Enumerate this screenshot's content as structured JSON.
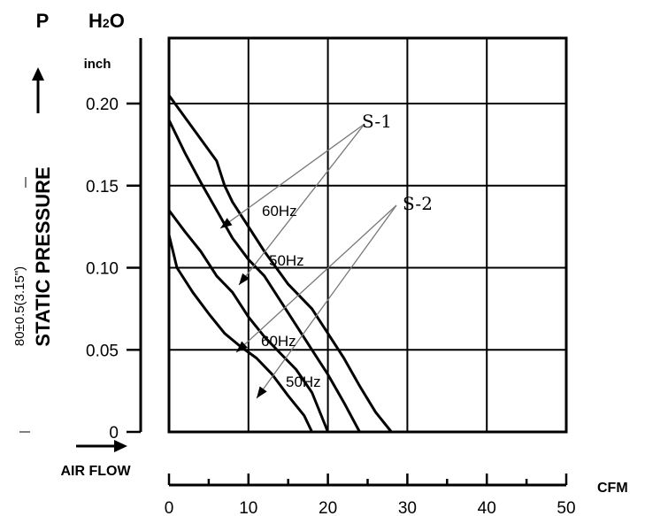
{
  "chart_data": {
    "type": "line",
    "y_axis": {
      "symbol": "P",
      "unit_main": "H",
      "unit_sub": "2",
      "unit_end": "O",
      "unit_line2": "inch",
      "label": "STATIC PRESSURE",
      "side_note": "80±0.5(3.15\")",
      "ylim": [
        0,
        0.2
      ],
      "ticks": [
        "0",
        "0.05",
        "0.10",
        "0.15",
        "0.20"
      ]
    },
    "x_axis": {
      "label": "AIR FLOW",
      "unit": "CFM",
      "xlim": [
        0,
        50
      ],
      "ticks": [
        "0",
        "10",
        "20",
        "30",
        "40",
        "50"
      ]
    },
    "grid": true,
    "series": [
      {
        "name": "S-1 60Hz",
        "points": [
          [
            0,
            0.205
          ],
          [
            3,
            0.185
          ],
          [
            6,
            0.165
          ],
          [
            7,
            0.15
          ],
          [
            8,
            0.14
          ],
          [
            10,
            0.125
          ],
          [
            12,
            0.11
          ],
          [
            15,
            0.09
          ],
          [
            18,
            0.075
          ],
          [
            20,
            0.06
          ],
          [
            22,
            0.045
          ],
          [
            24,
            0.028
          ],
          [
            26,
            0.012
          ],
          [
            28,
            0.0
          ]
        ]
      },
      {
        "name": "S-1 50Hz",
        "points": [
          [
            0,
            0.19
          ],
          [
            2,
            0.17
          ],
          [
            4,
            0.152
          ],
          [
            6,
            0.135
          ],
          [
            8,
            0.118
          ],
          [
            10,
            0.105
          ],
          [
            12,
            0.095
          ],
          [
            14,
            0.08
          ],
          [
            16,
            0.065
          ],
          [
            18,
            0.05
          ],
          [
            20,
            0.035
          ],
          [
            22,
            0.018
          ],
          [
            24,
            0.0
          ]
        ]
      },
      {
        "name": "S-2 60Hz",
        "points": [
          [
            0,
            0.135
          ],
          [
            2,
            0.122
          ],
          [
            4,
            0.11
          ],
          [
            6,
            0.095
          ],
          [
            8,
            0.085
          ],
          [
            10,
            0.07
          ],
          [
            12,
            0.058
          ],
          [
            14,
            0.048
          ],
          [
            16,
            0.038
          ],
          [
            18,
            0.024
          ],
          [
            20,
            0.0
          ]
        ]
      },
      {
        "name": "S-2 50Hz",
        "points": [
          [
            0,
            0.12
          ],
          [
            1,
            0.1
          ],
          [
            3,
            0.085
          ],
          [
            5,
            0.072
          ],
          [
            7,
            0.06
          ],
          [
            9,
            0.052
          ],
          [
            11,
            0.045
          ],
          [
            13,
            0.035
          ],
          [
            15,
            0.022
          ],
          [
            17,
            0.01
          ],
          [
            18,
            0.0
          ]
        ]
      }
    ],
    "annotations": [
      {
        "text": "S-1",
        "group": "S-1"
      },
      {
        "text": "S-2",
        "group": "S-2"
      },
      {
        "text": "60Hz",
        "series": "S-1 60Hz"
      },
      {
        "text": "50Hz",
        "series": "S-1 50Hz"
      },
      {
        "text": "60Hz",
        "series": "S-2 60Hz"
      },
      {
        "text": "50Hz",
        "series": "S-2 50Hz"
      }
    ]
  }
}
